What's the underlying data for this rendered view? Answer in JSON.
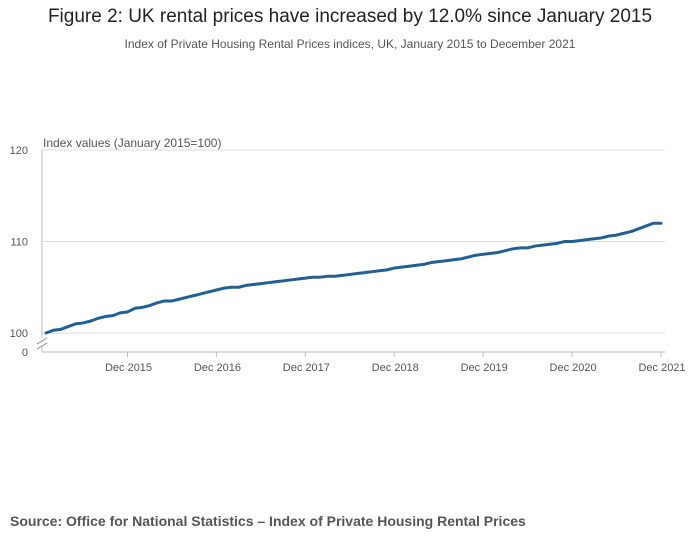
{
  "header": {
    "title": "Figure 2: UK rental prices have increased by 12.0% since January 2015",
    "subtitle": "Index of Private Housing Rental Prices indices, UK, January 2015 to December 2021"
  },
  "footer": {
    "source": "Source: Office for National Statistics – Index of Private Housing Rental Prices"
  },
  "chart_data": {
    "type": "line",
    "title": "Figure 2: UK rental prices have increased by 12.0% since January 2015",
    "subtitle": "Index of Private Housing Rental Prices indices, UK, January 2015 to December 2021",
    "xlabel": "",
    "ylabel": "Index values (January 2015=100)",
    "ylim": [
      100,
      120
    ],
    "y_broken_axis": true,
    "y_ticks": [
      "100",
      "110",
      "120"
    ],
    "y_zero_label": "0",
    "x_ticks": [
      "Dec 2015",
      "Dec 2016",
      "Dec 2017",
      "Dec 2018",
      "Dec 2019",
      "Dec 2020",
      "Dec 2021"
    ],
    "grid": true,
    "legend": "none",
    "line_color": "#206095",
    "x_start": "Jan 2015",
    "x_end": "Dec 2021",
    "values": [
      100.0,
      100.3,
      100.4,
      100.7,
      101.0,
      101.1,
      101.3,
      101.6,
      101.8,
      101.9,
      102.2,
      102.3,
      102.7,
      102.8,
      103.0,
      103.3,
      103.5,
      103.5,
      103.7,
      103.9,
      104.1,
      104.3,
      104.5,
      104.7,
      104.9,
      105.0,
      105.0,
      105.2,
      105.3,
      105.4,
      105.5,
      105.6,
      105.7,
      105.8,
      105.9,
      106.0,
      106.1,
      106.1,
      106.2,
      106.2,
      106.3,
      106.4,
      106.5,
      106.6,
      106.7,
      106.8,
      106.9,
      107.1,
      107.2,
      107.3,
      107.4,
      107.5,
      107.7,
      107.8,
      107.9,
      108.0,
      108.1,
      108.3,
      108.5,
      108.6,
      108.7,
      108.8,
      109.0,
      109.2,
      109.3,
      109.3,
      109.5,
      109.6,
      109.7,
      109.8,
      110.0,
      110.0,
      110.1,
      110.2,
      110.3,
      110.4,
      110.6,
      110.7,
      110.9,
      111.1,
      111.4,
      111.7,
      112.0,
      112.0
    ]
  }
}
